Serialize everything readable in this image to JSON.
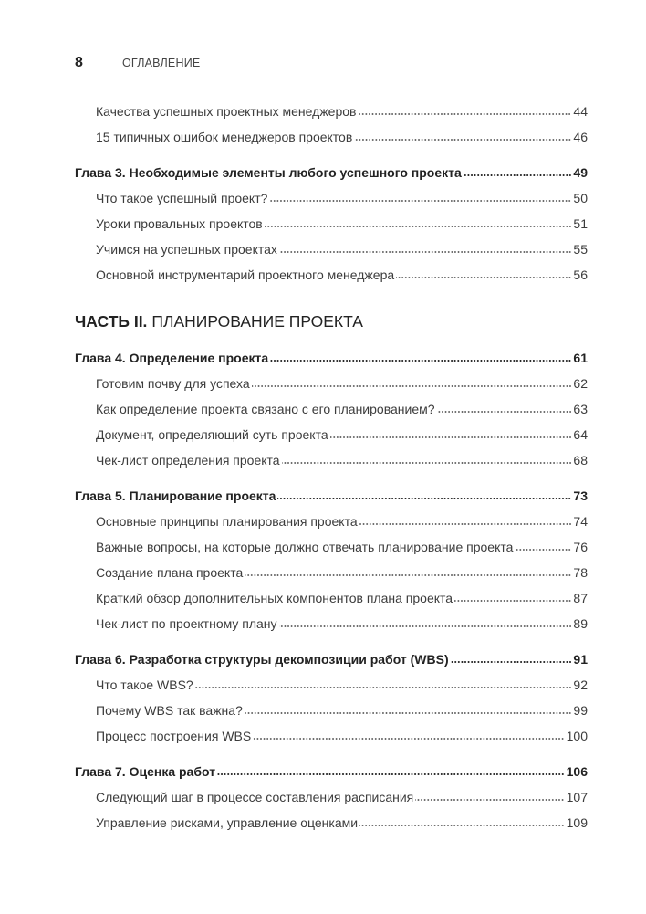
{
  "header": {
    "page_number": "8",
    "running_title": "ОГЛАВЛЕНИЕ"
  },
  "toc": [
    {
      "type": "section",
      "title": "Качества успешных проектных менеджеров",
      "page": "44"
    },
    {
      "type": "section",
      "title": "15 типичных ошибок менеджеров проектов",
      "page": "46"
    },
    {
      "type": "chapter",
      "title": "Глава 3. Необходимые элементы любого успешного проекта",
      "page": "49"
    },
    {
      "type": "section",
      "title": "Что такое успешный проект?",
      "page": "50"
    },
    {
      "type": "section",
      "title": "Уроки провальных проектов",
      "page": "51"
    },
    {
      "type": "section",
      "title": "Учимся на успешных проектах",
      "page": "55"
    },
    {
      "type": "section",
      "title": "Основной инструментарий проектного менеджера",
      "page": "56"
    },
    {
      "type": "part",
      "label": "ЧАСТЬ II.",
      "title": "ПЛАНИРОВАНИЕ ПРОЕКТА"
    },
    {
      "type": "chapter",
      "title": "Глава 4. Определение проекта",
      "page": "61"
    },
    {
      "type": "section",
      "title": "Готовим почву для успеха",
      "page": "62"
    },
    {
      "type": "section",
      "title": "Как определение проекта связано с его планированием?",
      "page": "63"
    },
    {
      "type": "section",
      "title": "Документ, определяющий суть проекта",
      "page": "64"
    },
    {
      "type": "section",
      "title": "Чек-лист определения проекта",
      "page": "68"
    },
    {
      "type": "chapter",
      "title": "Глава 5. Планирование проекта",
      "page": "73"
    },
    {
      "type": "section",
      "title": "Основные принципы планирования проекта",
      "page": "74"
    },
    {
      "type": "section",
      "title": "Важные вопросы, на которые должно отвечать планирование проекта",
      "page": "76"
    },
    {
      "type": "section",
      "title": "Создание плана проекта",
      "page": "78"
    },
    {
      "type": "section",
      "title": "Краткий обзор дополнительных компонентов плана проекта",
      "page": "87"
    },
    {
      "type": "section",
      "title": "Чек-лист по проектному плану",
      "page": "89"
    },
    {
      "type": "chapter",
      "title": "Глава 6. Разработка структуры декомпозиции работ (WBS)",
      "page": "91"
    },
    {
      "type": "section",
      "title": "Что такое WBS?",
      "page": "92"
    },
    {
      "type": "section",
      "title": "Почему WBS так важна?",
      "page": "99"
    },
    {
      "type": "section",
      "title": "Процесс построения WBS",
      "page": "100"
    },
    {
      "type": "chapter",
      "title": "Глава 7. Оценка работ",
      "page": "106"
    },
    {
      "type": "section",
      "title": "Следующий шаг в процессе составления расписания",
      "page": "107"
    },
    {
      "type": "section",
      "title": "Управление рисками, управление оценками",
      "page": "109"
    }
  ]
}
